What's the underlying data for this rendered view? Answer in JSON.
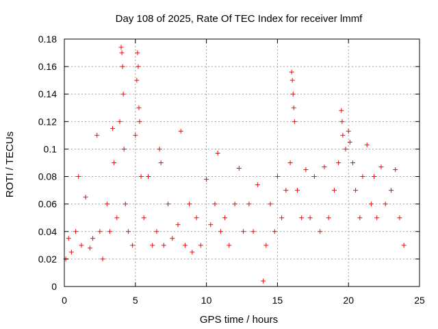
{
  "chart_data": {
    "type": "scatter",
    "title": "Day 108 of 2025, Rate Of TEC Index for receiver lmmf",
    "xlabel": "GPS time / hours",
    "ylabel": "ROTI / TECUs",
    "xlim": [
      0,
      25
    ],
    "ylim": [
      0,
      0.18
    ],
    "xticks": [
      0,
      5,
      10,
      15,
      20,
      25
    ],
    "xtick_labels": [
      "0",
      "5",
      "10",
      "15",
      "20",
      "25"
    ],
    "yticks": [
      0,
      0.02,
      0.04,
      0.06,
      0.08,
      0.1,
      0.12,
      0.14,
      0.16,
      0.18
    ],
    "ytick_labels": [
      "0",
      "0.02",
      "0.04",
      "0.06",
      "0.08",
      "0.1",
      "0.12",
      "0.14",
      "0.16",
      "0.18"
    ],
    "grid": true,
    "marker": "+",
    "color": "#ff0000",
    "series": [
      {
        "name": "ROTI",
        "x": [
          0.1,
          0.3,
          0.5,
          0.8,
          1.0,
          1.2,
          1.5,
          1.8,
          2.0,
          2.3,
          2.5,
          2.7,
          3.0,
          3.2,
          3.4,
          3.5,
          3.7,
          3.9,
          4.0,
          4.05,
          4.1,
          4.15,
          4.2,
          4.3,
          4.5,
          4.8,
          5.0,
          5.1,
          5.15,
          5.2,
          5.25,
          5.3,
          5.4,
          5.6,
          5.9,
          6.2,
          6.5,
          6.7,
          6.8,
          7.0,
          7.3,
          7.6,
          8.0,
          8.2,
          8.5,
          8.8,
          9.0,
          9.3,
          9.6,
          10.0,
          10.3,
          10.6,
          10.8,
          11.0,
          11.3,
          11.6,
          12.0,
          12.3,
          12.6,
          13.0,
          13.3,
          13.6,
          14.0,
          14.2,
          14.5,
          14.8,
          15.0,
          15.3,
          15.6,
          15.9,
          16.0,
          16.05,
          16.1,
          16.15,
          16.2,
          16.4,
          16.7,
          17.0,
          17.3,
          17.6,
          18.0,
          18.3,
          18.6,
          19.0,
          19.3,
          19.5,
          19.55,
          19.6,
          19.8,
          20.0,
          20.1,
          20.3,
          20.5,
          20.8,
          21.0,
          21.3,
          21.6,
          21.8,
          22.0,
          22.3,
          22.6,
          23.0,
          23.3,
          23.6,
          23.9
        ],
        "y": [
          0.02,
          0.035,
          0.025,
          0.04,
          0.08,
          0.03,
          0.065,
          0.028,
          0.035,
          0.11,
          0.04,
          0.02,
          0.06,
          0.04,
          0.115,
          0.09,
          0.05,
          0.12,
          0.174,
          0.17,
          0.16,
          0.14,
          0.1,
          0.06,
          0.04,
          0.03,
          0.11,
          0.15,
          0.17,
          0.16,
          0.13,
          0.12,
          0.08,
          0.05,
          0.08,
          0.03,
          0.04,
          0.1,
          0.09,
          0.03,
          0.06,
          0.035,
          0.045,
          0.113,
          0.03,
          0.06,
          0.025,
          0.05,
          0.03,
          0.078,
          0.045,
          0.06,
          0.097,
          0.04,
          0.05,
          0.03,
          0.06,
          0.086,
          0.04,
          0.06,
          0.04,
          0.074,
          0.004,
          0.03,
          0.06,
          0.04,
          0.08,
          0.05,
          0.07,
          0.09,
          0.156,
          0.15,
          0.14,
          0.13,
          0.12,
          0.07,
          0.05,
          0.085,
          0.05,
          0.08,
          0.04,
          0.087,
          0.05,
          0.07,
          0.09,
          0.128,
          0.12,
          0.11,
          0.1,
          0.113,
          0.105,
          0.09,
          0.07,
          0.05,
          0.08,
          0.103,
          0.06,
          0.08,
          0.05,
          0.087,
          0.06,
          0.07,
          0.085,
          0.05,
          0.03
        ]
      }
    ]
  }
}
